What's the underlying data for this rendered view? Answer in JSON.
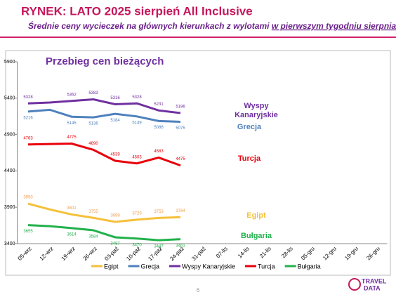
{
  "header": {
    "title": "RYNEK: LATO 2025 sierpień All Inclusive",
    "subtitle": "Średnie ceny wycieczek na głównych kierunkach z wylotami ",
    "subtitle_underlined": "w pierwszym tygodniu sierpnia"
  },
  "chart_data": {
    "type": "line",
    "title": "Przebieg cen bieżących",
    "categories": [
      "05-wrz",
      "12-wrz",
      "19-wrz",
      "26-wrz",
      "03-paź",
      "10-paź",
      "17-paź",
      "24-paź",
      "31-paź",
      "07-lis",
      "14-lis",
      "21-lis",
      "28-lis",
      "05-gru",
      "12-gru",
      "19-gru",
      "26-gru"
    ],
    "ylim": [
      3400,
      5900
    ],
    "yticks": [
      3400,
      3900,
      4400,
      4900,
      5400,
      5900
    ],
    "grid": false,
    "legend": "bottom",
    "series": [
      {
        "name": "Egipt",
        "color": "#f5c03a",
        "label_color": "#f39c4a",
        "values": [
          3950,
          3870,
          3801,
          3755,
          3699,
          3729,
          3753,
          3764,
          null,
          null,
          null,
          null,
          null,
          null,
          null,
          null,
          null
        ],
        "value_labels": [
          3950,
          null,
          3801,
          3755,
          3699,
          3729,
          3753,
          3764,
          null,
          null,
          null,
          null,
          null,
          null,
          null,
          null,
          null
        ]
      },
      {
        "name": "Grecja",
        "color": "#4f81bd",
        "label_color": "#4f81bd",
        "values": [
          5216,
          5240,
          5145,
          5136,
          5184,
          5149,
          5086,
          5075,
          null,
          null,
          null,
          null,
          null,
          null,
          null,
          null,
          null
        ],
        "value_labels": [
          5216,
          null,
          5145,
          5136,
          5184,
          5149,
          5086,
          5075,
          null,
          null,
          null,
          null,
          null,
          null,
          null,
          null,
          null
        ]
      },
      {
        "name": "Wyspy Kanaryjskie",
        "color": "#7030a0",
        "label_color": "#7030a0",
        "values": [
          5328,
          5340,
          5362,
          5383,
          5316,
          5328,
          5231,
          5196,
          null,
          null,
          null,
          null,
          null,
          null,
          null,
          null,
          null
        ],
        "value_labels": [
          5328,
          null,
          5362,
          5383,
          5316,
          5328,
          5231,
          5196,
          null,
          null,
          null,
          null,
          null,
          null,
          null,
          null,
          null
        ]
      },
      {
        "name": "Turcja",
        "color": "#e8000b",
        "label_color": "#e8000b",
        "values": [
          4763,
          4770,
          4775,
          4690,
          4539,
          4503,
          4583,
          4475,
          null,
          null,
          null,
          null,
          null,
          null,
          null,
          null,
          null
        ],
        "value_labels": [
          4763,
          null,
          4775,
          4690,
          4539,
          4503,
          4583,
          4475,
          null,
          null,
          null,
          null,
          null,
          null,
          null,
          null,
          null
        ]
      },
      {
        "name": "Bułgaria",
        "color": "#22b14c",
        "label_color": "#22b14c",
        "values": [
          3655,
          3640,
          3614,
          3584,
          3487,
          3470,
          3447,
          3461,
          null,
          null,
          null,
          null,
          null,
          null,
          null,
          null,
          null
        ],
        "value_labels": [
          3655,
          null,
          3614,
          3584,
          3487,
          3470,
          3447,
          3461,
          null,
          null,
          null,
          null,
          null,
          null,
          null,
          null,
          null
        ]
      }
    ]
  },
  "footer": {
    "page": "6",
    "logo_top": "TRAVEL",
    "logo_bottom": "DATA"
  }
}
